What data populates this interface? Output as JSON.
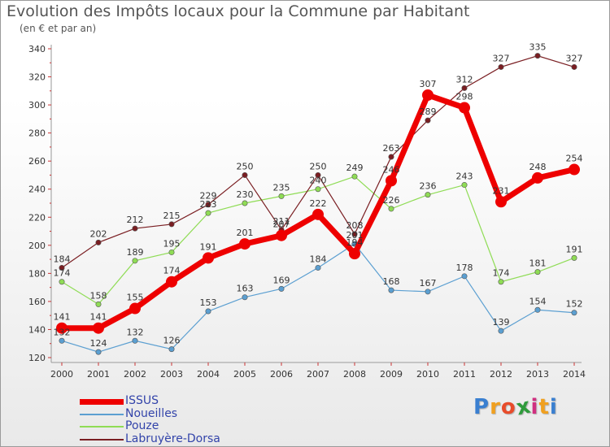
{
  "header": {
    "title": "Evolution des Impôts locaux pour la Commune par Habitant",
    "subtitle": "(en € et par an)"
  },
  "logo": {
    "text": "Proxiti",
    "letters": [
      "P",
      "r",
      "o",
      "x",
      "i",
      "t",
      "i"
    ],
    "colors": [
      "#3a7fd0",
      "#f0a020",
      "#e84c2b",
      "#2f9b3c",
      "#d03080",
      "#f0a020",
      "#3a7fd0"
    ]
  },
  "chart_data": {
    "type": "line",
    "title": "Evolution des Impôts locaux pour la Commune par Habitant",
    "subtitle": "(en € et par an)",
    "x": [
      "2000",
      "2001",
      "2002",
      "2003",
      "2004",
      "2005",
      "2006",
      "2007",
      "2008",
      "2009",
      "2010",
      "2011",
      "2012",
      "2013",
      "2014"
    ],
    "ylim": [
      120,
      340
    ],
    "yticks": [
      120,
      140,
      160,
      180,
      200,
      220,
      240,
      260,
      280,
      300,
      320,
      340
    ],
    "grid": false,
    "legend_position": "bottom-left",
    "series": [
      {
        "name": "ISSUS",
        "color": "#ee0000",
        "labelColor": "#333333",
        "emphasis": true,
        "values": [
          141,
          141,
          155,
          174,
          191,
          201,
          207,
          222,
          194,
          246,
          307,
          298,
          231,
          248,
          254
        ],
        "labels": [
          "141",
          "141",
          "155",
          "174",
          "191",
          "201",
          "207",
          "222",
          "194",
          "246",
          "307",
          "298",
          "231",
          "248",
          "254"
        ]
      },
      {
        "name": "Noueilles",
        "color": "#5b9fd1",
        "labelColor": "#333333",
        "values": [
          132,
          124,
          132,
          126,
          153,
          163,
          169,
          184,
          201,
          168,
          167,
          178,
          139,
          154,
          152
        ],
        "labels": [
          "132",
          "124",
          "132",
          "126",
          "153",
          "163",
          "169",
          "184",
          "201",
          "168",
          "167",
          "178",
          "139",
          "154",
          "152"
        ]
      },
      {
        "name": "Pouze",
        "color": "#8fdc55",
        "labelColor": "#333333",
        "values": [
          174,
          158,
          189,
          195,
          223,
          230,
          235,
          240,
          249,
          226,
          236,
          243,
          174,
          181,
          191
        ],
        "labels": [
          "174",
          "158",
          "189",
          "195",
          "223",
          "230",
          "235",
          "240",
          "249",
          "226",
          "236",
          "243",
          "174",
          "181",
          "191"
        ]
      },
      {
        "name": "Labruyère-Dorsa",
        "color": "#7a1e22",
        "labelColor": "#333333",
        "values": [
          184,
          202,
          212,
          215,
          229,
          250,
          211,
          250,
          208,
          263,
          289,
          312,
          327,
          335,
          327
        ],
        "labels": [
          "184",
          "202",
          "212",
          "215",
          "229",
          "250",
          "211",
          "250",
          "208",
          "263",
          "289",
          "312",
          "327",
          "335",
          "327"
        ]
      }
    ]
  }
}
